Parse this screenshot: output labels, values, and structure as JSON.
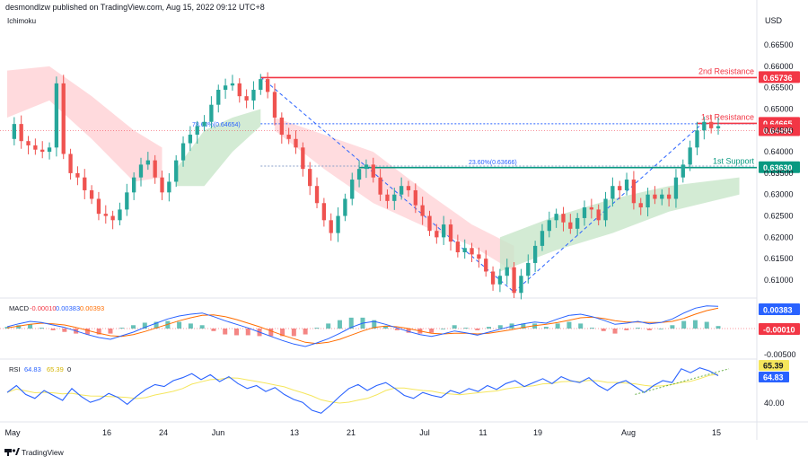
{
  "header": {
    "published": "desmondlzw published on TradingView.com, Aug 15, 2022 09:12 UTC+8",
    "indicator": "Ichimoku"
  },
  "footer": {
    "brand": "TradingView"
  },
  "colors": {
    "up": "#26a69a",
    "down": "#ef5350",
    "resistance": "#f23645",
    "support": "#089981",
    "cloud_bull": "#c8e6c9",
    "cloud_bear": "#ffcdd2",
    "fib": "#2962ff",
    "macd": "#2962ff",
    "signal": "#ff6d00",
    "rsi": "#2962ff",
    "rsi_ma": "#f5e65c"
  },
  "chart_data": [
    {
      "type": "candlestick",
      "title": "",
      "currency": "USD",
      "yticks": [
        "0.66500",
        "0.66000",
        "0.65500",
        "0.65000",
        "0.64500",
        "0.64000",
        "0.63500",
        "0.63000",
        "0.62500",
        "0.62000",
        "0.61500",
        "0.61000"
      ],
      "ylim": [
        0.6055,
        0.67
      ],
      "xticks": [
        "May",
        "16",
        "24",
        "Jun",
        "13",
        "21",
        "Jul",
        "11",
        "19",
        "Aug",
        "15"
      ],
      "price_path": [
        0.643,
        0.6465,
        0.6425,
        0.6415,
        0.6405,
        0.64,
        0.641,
        0.656,
        0.6395,
        0.635,
        0.634,
        0.631,
        0.629,
        0.6255,
        0.625,
        0.624,
        0.6265,
        0.6305,
        0.634,
        0.637,
        0.638,
        0.634,
        0.6305,
        0.633,
        0.638,
        0.642,
        0.644,
        0.646,
        0.647,
        0.651,
        0.6545,
        0.6555,
        0.656,
        0.653,
        0.652,
        0.6545,
        0.657,
        0.654,
        0.648,
        0.644,
        0.643,
        0.641,
        0.636,
        0.632,
        0.628,
        0.624,
        0.621,
        0.625,
        0.629,
        0.6335,
        0.636,
        0.637,
        0.634,
        0.63,
        0.6285,
        0.63,
        0.632,
        0.631,
        0.6275,
        0.625,
        0.6215,
        0.62,
        0.623,
        0.619,
        0.6165,
        0.6175,
        0.616,
        0.615,
        0.612,
        0.609,
        0.611,
        0.613,
        0.607,
        0.611,
        0.614,
        0.618,
        0.6215,
        0.624,
        0.6255,
        0.6235,
        0.622,
        0.6245,
        0.627,
        0.6265,
        0.624,
        0.629,
        0.632,
        0.631,
        0.6335,
        0.628,
        0.627,
        0.63,
        0.629,
        0.63,
        0.629,
        0.634,
        0.637,
        0.641,
        0.645,
        0.647,
        0.6455,
        0.646
      ],
      "levels": [
        {
          "label": "2nd Resistance",
          "value": "0.65736",
          "price": 0.65736,
          "color": "#f23645"
        },
        {
          "label": "1st Resistance",
          "value": "0.64665",
          "price": 0.64665,
          "color": "#f23645"
        },
        {
          "label": "1st Support",
          "value": "0.63630",
          "price": 0.6363,
          "color": "#089981"
        }
      ],
      "fib_labels": [
        "78.60%(0.64654)",
        "23.60%(0.63666)"
      ],
      "last_price": {
        "value": "0.64495",
        "price": 0.64495
      }
    },
    {
      "type": "macd",
      "legend": {
        "name": "MACD",
        "hist": "-0.00010",
        "macd": "0.00383",
        "signal": "0.00393"
      },
      "badges": [
        {
          "value": "0.00383",
          "color": "#2962ff"
        },
        {
          "value": "-0.00010",
          "color": "#f23645"
        }
      ],
      "tick": "-0.00500",
      "macd_line": [
        0.3,
        0.8,
        1.2,
        1.0,
        0.6,
        0.2,
        -0.4,
        -1.0,
        -1.5,
        -1.8,
        -1.2,
        -0.6,
        0.2,
        0.9,
        1.6,
        2.1,
        2.4,
        2.6,
        2.0,
        1.3,
        0.7,
        0.1,
        -0.6,
        -1.3,
        -2.0,
        -2.6,
        -3.0,
        -2.4,
        -1.7,
        -0.8,
        0.2,
        0.9,
        1.2,
        0.7,
        0.1,
        -0.5,
        -1.0,
        -1.3,
        -0.9,
        -0.4,
        -0.7,
        -1.1,
        -0.6,
        -0.1,
        0.4,
        0.8,
        1.1,
        0.9,
        1.6,
        2.2,
        2.4,
        2.0,
        1.4,
        0.7,
        0.9,
        1.2,
        0.8,
        1.0,
        1.6,
        2.6,
        3.4,
        3.8,
        3.7
      ],
      "signal_line": [
        0.1,
        0.4,
        0.7,
        0.9,
        0.8,
        0.6,
        0.2,
        -0.3,
        -0.8,
        -1.2,
        -1.3,
        -1.0,
        -0.5,
        0.1,
        0.7,
        1.3,
        1.8,
        2.2,
        2.3,
        2.0,
        1.5,
        0.9,
        0.3,
        -0.4,
        -1.1,
        -1.7,
        -2.3,
        -2.5,
        -2.3,
        -1.8,
        -1.1,
        -0.4,
        0.2,
        0.4,
        0.3,
        0.0,
        -0.4,
        -0.8,
        -0.9,
        -0.8,
        -0.8,
        -0.9,
        -0.8,
        -0.5,
        -0.2,
        0.2,
        0.5,
        0.7,
        1.0,
        1.4,
        1.8,
        1.9,
        1.7,
        1.3,
        1.1,
        1.1,
        1.0,
        1.0,
        1.2,
        1.7,
        2.4,
        3.0,
        3.4
      ]
    },
    {
      "type": "rsi",
      "legend": {
        "name": "RSI",
        "rsi": "64.83",
        "ma": "65.39",
        "extra": "0"
      },
      "badges": [
        {
          "value": "65.39",
          "color": "#f5e65c"
        },
        {
          "value": "64.83",
          "color": "#2962ff"
        }
      ],
      "tick": "40.00",
      "ylim": [
        20,
        80
      ],
      "rsi_line": [
        48,
        55,
        46,
        42,
        50,
        45,
        40,
        52,
        44,
        38,
        41,
        47,
        43,
        36,
        44,
        51,
        56,
        54,
        60,
        63,
        67,
        61,
        66,
        59,
        64,
        57,
        52,
        55,
        49,
        53,
        46,
        41,
        38,
        30,
        27,
        35,
        44,
        52,
        56,
        50,
        55,
        58,
        52,
        45,
        42,
        48,
        45,
        43,
        50,
        47,
        52,
        49,
        55,
        51,
        57,
        60,
        54,
        58,
        62,
        57,
        64,
        60,
        58,
        63,
        55,
        50,
        57,
        60,
        54,
        48,
        55,
        60,
        58,
        72,
        68,
        73,
        70,
        65
      ]
    }
  ]
}
